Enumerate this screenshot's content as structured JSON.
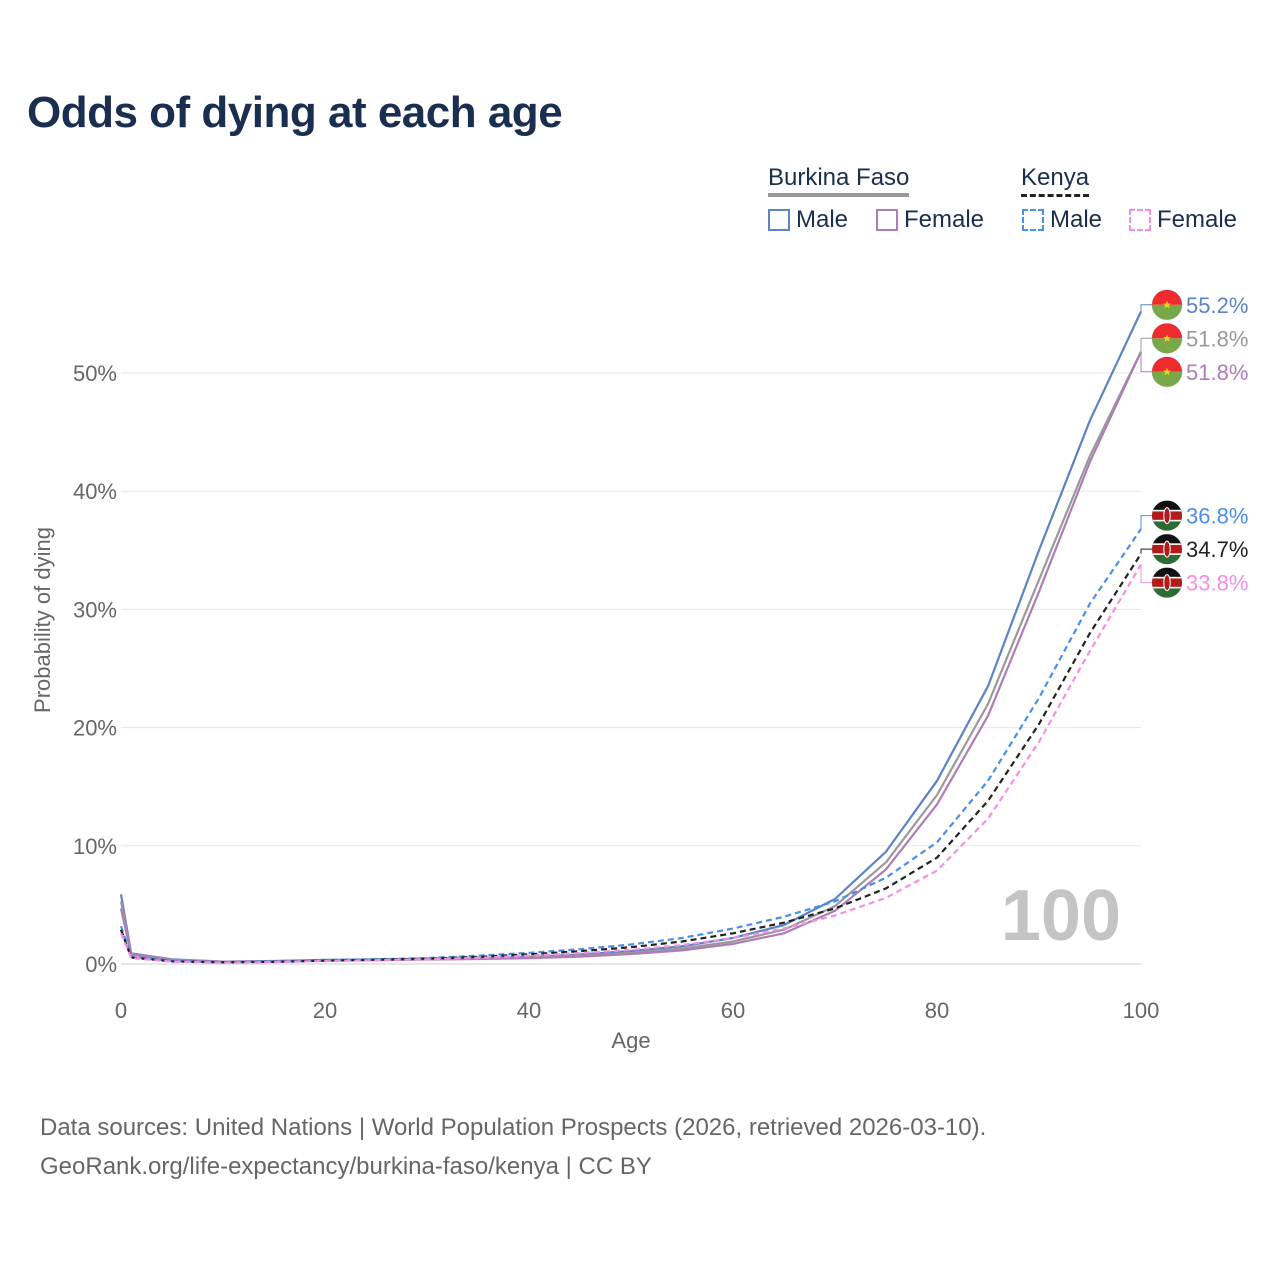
{
  "title": "Odds of dying at each age",
  "legend": {
    "groups": [
      {
        "name": "Burkina Faso",
        "male_label": "Male",
        "female_label": "Female"
      },
      {
        "name": "Kenya",
        "male_label": "Male",
        "female_label": "Female"
      }
    ]
  },
  "watermark": "100",
  "source": {
    "line1": "Data sources: United Nations | World Population Prospects (2026, retrieved 2026-03-10).",
    "line2": "GeoRank.org/life-expectancy/burkina-faso/kenya | CC BY"
  },
  "colors": {
    "bf_male": "#5b84c4",
    "bf_female": "#b07cb8",
    "bf_total": "#999999",
    "ke_male": "#4a8fe8",
    "ke_female": "#f58ee6",
    "ke_total": "#222222",
    "title": "#1a2e4f"
  },
  "chart_data": {
    "type": "line",
    "title": "Odds of dying at each age",
    "xlabel": "Age",
    "ylabel": "Probability of dying",
    "xlim": [
      0,
      100
    ],
    "ylim": [
      0,
      58
    ],
    "xticks": [
      0,
      20,
      40,
      60,
      80,
      100
    ],
    "yticks": [
      0,
      10,
      20,
      30,
      40,
      50
    ],
    "x_tick_labels": [
      "0",
      "20",
      "40",
      "60",
      "80",
      "100"
    ],
    "y_tick_labels": [
      "0%",
      "10%",
      "20%",
      "30%",
      "40%",
      "50%"
    ],
    "grid": true,
    "series": [
      {
        "key": "bf_male",
        "name": "Burkina Faso Male",
        "style": "solid",
        "colorKey": "bf_male",
        "end_label": "55.2%",
        "flag": "burkina-faso",
        "points": [
          [
            0,
            5.9
          ],
          [
            1,
            0.9
          ],
          [
            5,
            0.4
          ],
          [
            10,
            0.2
          ],
          [
            15,
            0.25
          ],
          [
            20,
            0.35
          ],
          [
            25,
            0.4
          ],
          [
            30,
            0.45
          ],
          [
            35,
            0.5
          ],
          [
            40,
            0.6
          ],
          [
            45,
            0.8
          ],
          [
            50,
            1.1
          ],
          [
            55,
            1.5
          ],
          [
            60,
            2.2
          ],
          [
            65,
            3.3
          ],
          [
            70,
            5.5
          ],
          [
            75,
            9.5
          ],
          [
            80,
            15.5
          ],
          [
            85,
            23.5
          ],
          [
            90,
            35.0
          ],
          [
            95,
            46.0
          ],
          [
            100,
            55.2
          ]
        ]
      },
      {
        "key": "bf_total",
        "name": "Burkina Faso Total",
        "style": "solid",
        "colorKey": "bf_total",
        "end_label": "51.8%",
        "flag": "burkina-faso",
        "points": [
          [
            0,
            5.3
          ],
          [
            1,
            0.85
          ],
          [
            5,
            0.35
          ],
          [
            10,
            0.2
          ],
          [
            15,
            0.22
          ],
          [
            20,
            0.3
          ],
          [
            25,
            0.35
          ],
          [
            30,
            0.4
          ],
          [
            35,
            0.45
          ],
          [
            40,
            0.55
          ],
          [
            45,
            0.7
          ],
          [
            50,
            0.95
          ],
          [
            55,
            1.3
          ],
          [
            60,
            1.9
          ],
          [
            65,
            2.9
          ],
          [
            70,
            4.9
          ],
          [
            75,
            8.6
          ],
          [
            80,
            14.3
          ],
          [
            85,
            22.0
          ],
          [
            90,
            32.5
          ],
          [
            95,
            43.0
          ],
          [
            100,
            51.8
          ]
        ]
      },
      {
        "key": "bf_female",
        "name": "Burkina Faso Female",
        "style": "solid",
        "colorKey": "bf_female",
        "end_label": "51.8%",
        "flag": "burkina-faso",
        "points": [
          [
            0,
            4.7
          ],
          [
            1,
            0.8
          ],
          [
            5,
            0.3
          ],
          [
            10,
            0.18
          ],
          [
            15,
            0.2
          ],
          [
            20,
            0.28
          ],
          [
            25,
            0.32
          ],
          [
            30,
            0.38
          ],
          [
            35,
            0.42
          ],
          [
            40,
            0.5
          ],
          [
            45,
            0.62
          ],
          [
            50,
            0.85
          ],
          [
            55,
            1.15
          ],
          [
            60,
            1.7
          ],
          [
            65,
            2.6
          ],
          [
            70,
            4.5
          ],
          [
            75,
            8.0
          ],
          [
            80,
            13.5
          ],
          [
            85,
            21.0
          ],
          [
            90,
            31.5
          ],
          [
            95,
            42.5
          ],
          [
            100,
            51.8
          ]
        ]
      },
      {
        "key": "ke_male",
        "name": "Kenya Male",
        "style": "dashed",
        "colorKey": "ke_male",
        "end_label": "36.8%",
        "flag": "kenya",
        "points": [
          [
            0,
            3.2
          ],
          [
            1,
            0.6
          ],
          [
            5,
            0.25
          ],
          [
            10,
            0.15
          ],
          [
            15,
            0.2
          ],
          [
            20,
            0.3
          ],
          [
            25,
            0.4
          ],
          [
            30,
            0.5
          ],
          [
            35,
            0.7
          ],
          [
            40,
            0.95
          ],
          [
            45,
            1.25
          ],
          [
            50,
            1.65
          ],
          [
            55,
            2.2
          ],
          [
            60,
            3.0
          ],
          [
            65,
            4.0
          ],
          [
            70,
            5.3
          ],
          [
            75,
            7.3
          ],
          [
            80,
            10.3
          ],
          [
            85,
            15.5
          ],
          [
            90,
            22.5
          ],
          [
            95,
            30.5
          ],
          [
            100,
            36.8
          ]
        ]
      },
      {
        "key": "ke_total",
        "name": "Kenya Total",
        "style": "dashed",
        "colorKey": "ke_total",
        "end_label": "34.7%",
        "flag": "kenya",
        "points": [
          [
            0,
            2.9
          ],
          [
            1,
            0.55
          ],
          [
            5,
            0.22
          ],
          [
            10,
            0.14
          ],
          [
            15,
            0.18
          ],
          [
            20,
            0.28
          ],
          [
            25,
            0.36
          ],
          [
            30,
            0.45
          ],
          [
            35,
            0.6
          ],
          [
            40,
            0.82
          ],
          [
            45,
            1.08
          ],
          [
            50,
            1.42
          ],
          [
            55,
            1.9
          ],
          [
            60,
            2.6
          ],
          [
            65,
            3.5
          ],
          [
            70,
            4.7
          ],
          [
            75,
            6.4
          ],
          [
            80,
            9.0
          ],
          [
            85,
            13.8
          ],
          [
            90,
            20.3
          ],
          [
            95,
            28.0
          ],
          [
            100,
            34.7
          ]
        ]
      },
      {
        "key": "ke_female",
        "name": "Kenya Female",
        "style": "dashed",
        "colorKey": "ke_female",
        "end_label": "33.8%",
        "flag": "kenya",
        "points": [
          [
            0,
            2.6
          ],
          [
            1,
            0.5
          ],
          [
            5,
            0.2
          ],
          [
            10,
            0.12
          ],
          [
            15,
            0.16
          ],
          [
            20,
            0.25
          ],
          [
            25,
            0.32
          ],
          [
            30,
            0.4
          ],
          [
            35,
            0.52
          ],
          [
            40,
            0.7
          ],
          [
            45,
            0.92
          ],
          [
            50,
            1.2
          ],
          [
            55,
            1.6
          ],
          [
            60,
            2.2
          ],
          [
            65,
            3.0
          ],
          [
            70,
            4.1
          ],
          [
            75,
            5.6
          ],
          [
            80,
            7.9
          ],
          [
            85,
            12.3
          ],
          [
            90,
            18.8
          ],
          [
            95,
            26.5
          ],
          [
            100,
            33.8
          ]
        ]
      }
    ]
  }
}
